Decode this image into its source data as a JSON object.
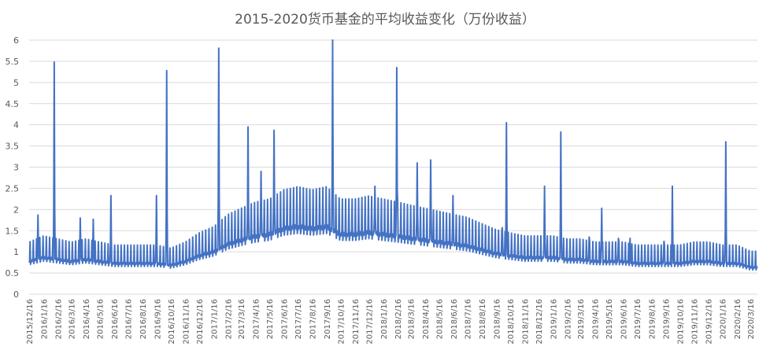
{
  "chart_data": {
    "type": "line",
    "title": "2015-2020货币基金的平均收益变化（万份收益）",
    "xlabel": "",
    "ylabel": "",
    "ylim": [
      0,
      6
    ],
    "yticks": [
      0,
      0.5,
      1,
      1.5,
      2,
      2.5,
      3,
      3.5,
      4,
      4.5,
      5,
      5.5,
      6
    ],
    "grid": true,
    "legend": "none",
    "series_color": "#4472C4",
    "x_tick_labels": [
      "2015/12/16",
      "2016/1/16",
      "2016/2/16",
      "2016/3/16",
      "2016/4/16",
      "2016/5/16",
      "2016/6/16",
      "2016/7/16",
      "2016/8/16",
      "2016/9/16",
      "2016/10/16",
      "2016/11/16",
      "2016/12/16",
      "2017/1/16",
      "2017/2/16",
      "2017/3/16",
      "2017/4/16",
      "2017/5/16",
      "2017/6/16",
      "2017/7/16",
      "2017/8/16",
      "2017/9/16",
      "2017/10/16",
      "2017/11/16",
      "2017/12/16",
      "2018/1/16",
      "2018/2/16",
      "2018/3/16",
      "2018/4/16",
      "2018/5/16",
      "2018/6/16",
      "2018/7/16",
      "2018/8/16",
      "2018/9/16",
      "2018/10/16",
      "2018/11/16",
      "2018/12/16",
      "2019/1/16",
      "2019/2/16",
      "2019/3/16",
      "2019/4/16",
      "2019/5/16",
      "2019/6/16",
      "2019/7/16",
      "2019/8/16",
      "2019/9/16",
      "2019/10/16",
      "2019/11/16",
      "2019/12/16",
      "2020/1/16",
      "2020/2/16",
      "2020/3/16"
    ],
    "series": [
      {
        "x": [
          "2015/12/16",
          "2016/1/16",
          "2016/2/16",
          "2016/3/16",
          "2016/4/16",
          "2016/5/16",
          "2016/6/16",
          "2016/7/16",
          "2016/8/16",
          "2016/9/16",
          "2016/10/16",
          "2016/11/16",
          "2016/12/16",
          "2017/1/16",
          "2017/2/16",
          "2017/3/16",
          "2017/4/16",
          "2017/5/16",
          "2017/6/16",
          "2017/7/16",
          "2017/8/16",
          "2017/9/16",
          "2017/10/16",
          "2017/11/16",
          "2017/12/16",
          "2018/1/16",
          "2018/2/16",
          "2018/3/16",
          "2018/4/16",
          "2018/5/16",
          "2018/6/16",
          "2018/7/16",
          "2018/8/16",
          "2018/9/16",
          "2018/10/16",
          "2018/11/16",
          "2018/12/16",
          "2019/1/16",
          "2019/2/16",
          "2019/3/16",
          "2019/4/16",
          "2019/5/16",
          "2019/6/16",
          "2019/7/16",
          "2019/8/16",
          "2019/9/16",
          "2019/10/16",
          "2019/11/16",
          "2019/12/16",
          "2020/1/16",
          "2020/2/16",
          "2020/3/16"
        ],
        "values": [
          0.85,
          0.95,
          0.9,
          0.85,
          0.9,
          0.85,
          0.8,
          0.8,
          0.8,
          0.8,
          0.75,
          0.85,
          1.0,
          1.1,
          1.3,
          1.4,
          1.5,
          1.55,
          1.7,
          1.75,
          1.7,
          1.75,
          1.55,
          1.55,
          1.6,
          1.55,
          1.5,
          1.45,
          1.4,
          1.35,
          1.3,
          1.25,
          1.15,
          1.05,
          1.0,
          0.95,
          0.95,
          0.95,
          0.9,
          0.9,
          0.85,
          0.85,
          0.85,
          0.8,
          0.8,
          0.8,
          0.8,
          0.85,
          0.85,
          0.8,
          0.8,
          0.7
        ],
        "spikes": [
          {
            "x": "2016/1/4",
            "y": 1.87
          },
          {
            "x": "2016/2/8",
            "y": 5.48
          },
          {
            "x": "2016/4/4",
            "y": 1.8
          },
          {
            "x": "2016/5/2",
            "y": 1.77
          },
          {
            "x": "2016/6/9",
            "y": 2.33
          },
          {
            "x": "2016/9/15",
            "y": 2.33
          },
          {
            "x": "2016/10/7",
            "y": 5.28
          },
          {
            "x": "2017/1/27",
            "y": 5.81
          },
          {
            "x": "2017/3/31",
            "y": 3.95
          },
          {
            "x": "2017/4/28",
            "y": 2.9
          },
          {
            "x": "2017/5/26",
            "y": 3.87
          },
          {
            "x": "2017/9/29",
            "y": 6.0
          },
          {
            "x": "2017/12/29",
            "y": 2.55
          },
          {
            "x": "2018/2/14",
            "y": 5.35
          },
          {
            "x": "2018/3/30",
            "y": 3.1
          },
          {
            "x": "2018/4/28",
            "y": 3.17
          },
          {
            "x": "2018/6/15",
            "y": 2.33
          },
          {
            "x": "2018/9/29",
            "y": 1.57
          },
          {
            "x": "2018/10/8",
            "y": 4.05
          },
          {
            "x": "2018/12/29",
            "y": 2.55
          },
          {
            "x": "2019/2/2",
            "y": 3.83
          },
          {
            "x": "2019/4/4",
            "y": 1.35
          },
          {
            "x": "2019/5/1",
            "y": 2.03
          },
          {
            "x": "2019/6/6",
            "y": 1.32
          },
          {
            "x": "2019/7/1",
            "y": 1.32
          },
          {
            "x": "2019/9/12",
            "y": 1.25
          },
          {
            "x": "2019/9/30",
            "y": 2.55
          },
          {
            "x": "2020/1/23",
            "y": 3.6
          }
        ]
      }
    ]
  }
}
